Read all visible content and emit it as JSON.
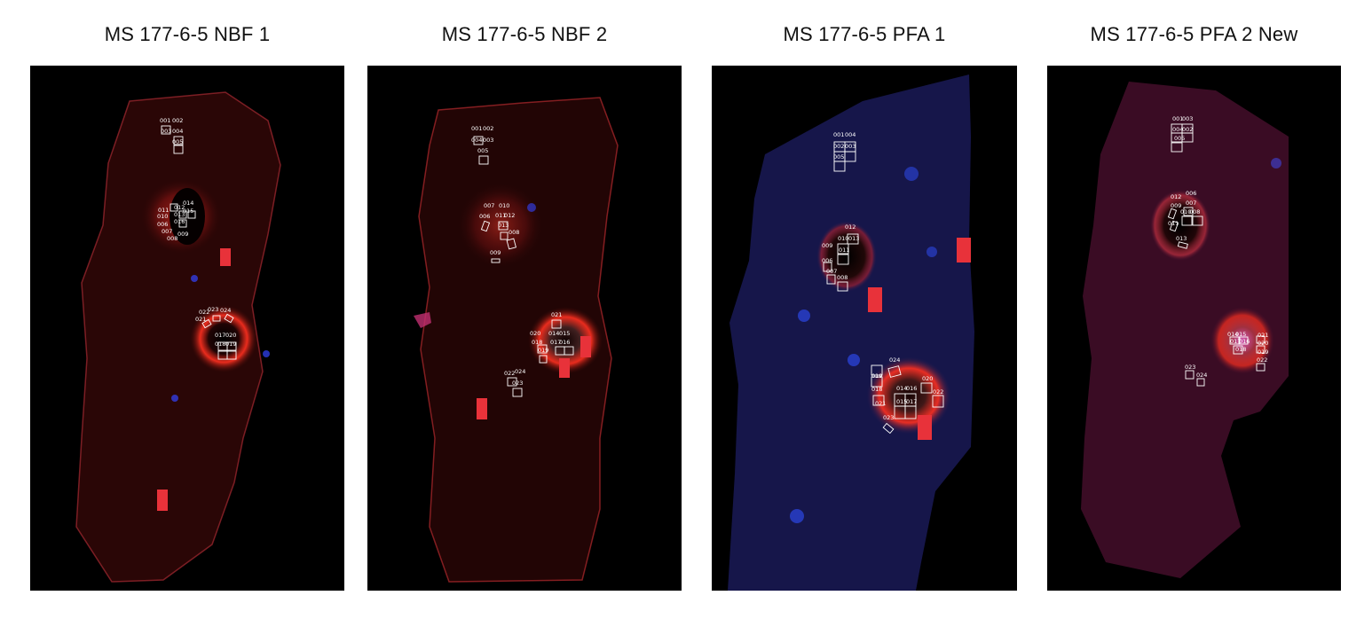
{
  "panels": [
    {
      "title": "MS 177-6-5 NBF 1",
      "labels": [
        "001",
        "002",
        "003",
        "004",
        "005",
        "011",
        "012",
        "014",
        "010",
        "013",
        "015",
        "006",
        "016",
        "007",
        "009",
        "008",
        "022",
        "023",
        "024",
        "021",
        "017",
        "020",
        "018",
        "019"
      ],
      "red_marks": 2
    },
    {
      "title": "MS 177-6-5 NBF 2",
      "labels": [
        "001",
        "002",
        "004",
        "003",
        "005",
        "007",
        "010",
        "006",
        "011",
        "012",
        "013",
        "008",
        "009",
        "021",
        "020",
        "014",
        "015",
        "018",
        "017",
        "016",
        "019",
        "022",
        "024",
        "023"
      ],
      "red_marks": 4
    },
    {
      "title": "MS 177-6-5 PFA 1",
      "labels": [
        "001",
        "004",
        "002",
        "003",
        "005",
        "012",
        "010",
        "013",
        "011",
        "009",
        "006",
        "007",
        "008",
        "024",
        "019",
        "020",
        "018",
        "014",
        "016",
        "022",
        "021",
        "015",
        "017",
        "023"
      ],
      "red_marks": 3
    },
    {
      "title": "MS 177-6-5 PFA 2 New",
      "labels": [
        "001",
        "003",
        "004",
        "002",
        "005",
        "006",
        "012",
        "007",
        "010",
        "008",
        "009",
        "011",
        "013",
        "014",
        "015",
        "021",
        "017",
        "016",
        "020",
        "018",
        "019",
        "022",
        "023",
        "024"
      ],
      "red_marks": 0
    }
  ]
}
